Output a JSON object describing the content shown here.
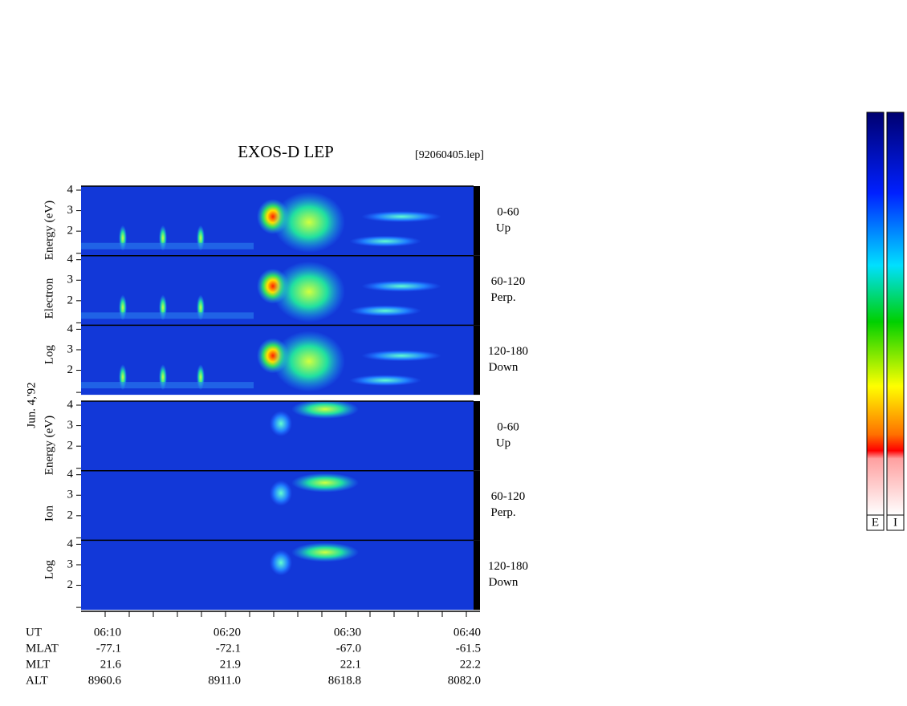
{
  "title": "EXOS-D LEP",
  "file": "[92060405.lep]",
  "date": "Jun. 4,'92",
  "groups": [
    {
      "label": [
        "Log",
        "Electron",
        "Energy (eV)"
      ],
      "panels": [
        {
          "angle": "0-60",
          "dir": "Up"
        },
        {
          "angle": "60-120",
          "dir": "Perp."
        },
        {
          "angle": "120-180",
          "dir": "Down"
        }
      ]
    },
    {
      "label": [
        "Log",
        "Ion",
        "Energy (eV)"
      ],
      "panels": [
        {
          "angle": "0-60",
          "dir": "Up"
        },
        {
          "angle": "60-120",
          "dir": "Perp."
        },
        {
          "angle": "120-180",
          "dir": "Down"
        }
      ]
    }
  ],
  "yticks": [
    2,
    3,
    4
  ],
  "orbit": [
    [
      "UT",
      "06:10",
      "06:20",
      "06:30",
      "06:40"
    ],
    [
      "MLAT",
      "-77.1",
      "-72.1",
      "-67.0",
      "-61.5"
    ],
    [
      "MLT",
      "21.6",
      "21.9",
      "22.1",
      "22.2"
    ],
    [
      "ALT",
      "8960.6",
      "8911.0",
      "8618.8",
      "8082.0"
    ]
  ],
  "colorbar": [
    "E",
    "I"
  ]
}
